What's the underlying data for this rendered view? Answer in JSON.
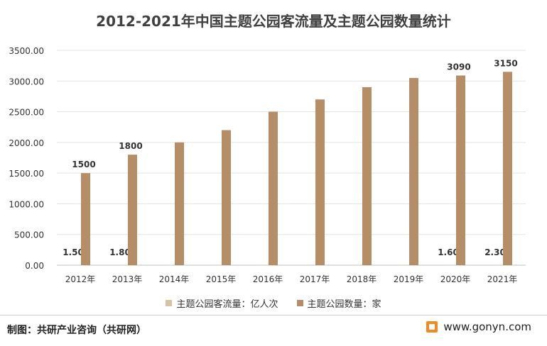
{
  "chart_data": {
    "type": "bar",
    "title": "2012-2021年中国主题公园客流量及主题公园数量统计",
    "categories": [
      "2012年",
      "2013年",
      "2014年",
      "2015年",
      "2016年",
      "2017年",
      "2018年",
      "2019年",
      "2020年",
      "2021年"
    ],
    "series": [
      {
        "name": "主题公园客流量：亿人次",
        "color": "#d7c3a2",
        "values": [
          1.5,
          1.8,
          1.9,
          2.0,
          2.2,
          2.5,
          2.8,
          3.0,
          1.6,
          2.3
        ],
        "labels": [
          "1.50",
          "1.80",
          "",
          "",
          "",
          "",
          "",
          "",
          "1.60",
          "2.30"
        ]
      },
      {
        "name": "主题公园数量：家",
        "color": "#b58d67",
        "values": [
          1500,
          1800,
          2000,
          2200,
          2500,
          2700,
          2900,
          3050,
          3090,
          3150
        ],
        "labels": [
          "1500",
          "1800",
          "",
          "",
          "",
          "",
          "",
          "",
          "3090",
          "3150"
        ]
      }
    ],
    "ylim": [
      0,
      3500
    ],
    "yticks": [
      "0.00",
      "500.00",
      "1000.00",
      "1500.00",
      "2000.00",
      "2500.00",
      "3000.00",
      "3500.00"
    ],
    "grid": true,
    "legend_position": "bottom"
  },
  "footer": {
    "source": "制图：共研产业咨询（共研网）",
    "website": "www.gonyn.com"
  }
}
